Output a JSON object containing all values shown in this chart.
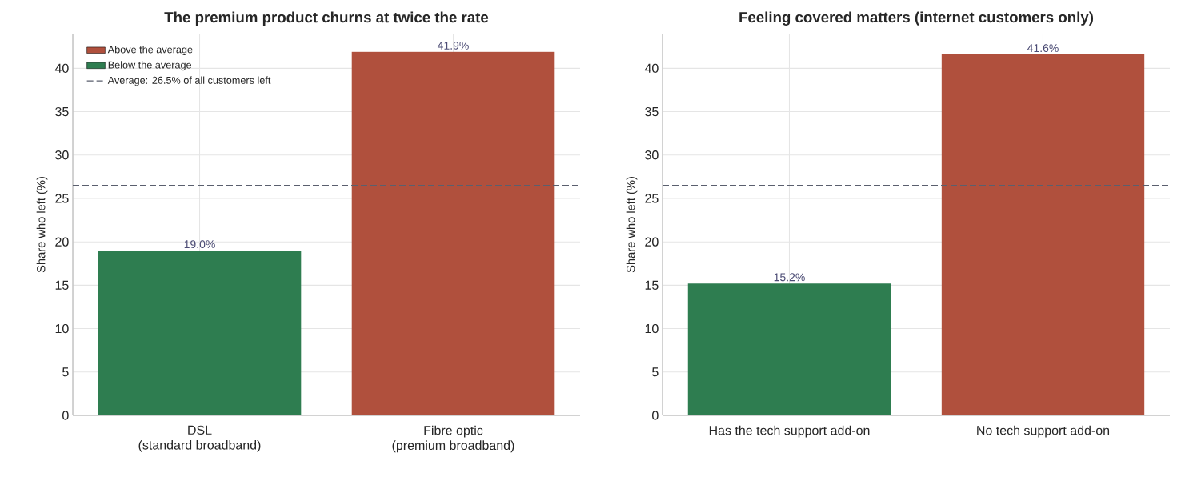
{
  "chart_data": [
    {
      "type": "bar",
      "title": "The premium product churns at twice the rate",
      "ylabel": "Share who left (%)",
      "categories": [
        "DSL\n(standard broadband)",
        "Fibre optic\n(premium broadband)"
      ],
      "series": [
        {
          "name": "Above the average",
          "color": "#b0503d",
          "values": [
            null,
            41.9
          ],
          "value_labels": [
            null,
            "41.9%"
          ]
        },
        {
          "name": "Below the average",
          "color": "#2e7d50",
          "values": [
            19.0,
            null
          ],
          "value_labels": [
            "19.0%",
            null
          ]
        }
      ],
      "ylim": [
        0,
        44
      ],
      "yticks": [
        0,
        5,
        10,
        15,
        20,
        25,
        30,
        35,
        40
      ],
      "grid": true,
      "legend": "top left",
      "ref_lines": [
        {
          "axis": "y",
          "value": 26.5,
          "label": "Average: 26.5% of all customers left",
          "color": "#5a5f6e",
          "line_style": "dashed"
        }
      ]
    },
    {
      "type": "bar",
      "title": "Feeling covered matters (internet customers only)",
      "ylabel": "Share who left (%)",
      "categories": [
        "Has the tech support add-on",
        "No tech support add-on"
      ],
      "series": [
        {
          "color": "#b0503d",
          "values": [
            null,
            41.6
          ],
          "value_labels": [
            null,
            "41.6%"
          ]
        },
        {
          "color": "#2e7d50",
          "values": [
            15.2,
            null
          ],
          "value_labels": [
            "15.2%",
            null
          ]
        }
      ],
      "ylim": [
        0,
        44
      ],
      "yticks": [
        0,
        5,
        10,
        15,
        20,
        25,
        30,
        35,
        40
      ],
      "grid": true,
      "ref_lines": [
        {
          "axis": "y",
          "value": 26.5,
          "color": "#5a5f6e",
          "line_style": "dashed"
        }
      ]
    }
  ]
}
